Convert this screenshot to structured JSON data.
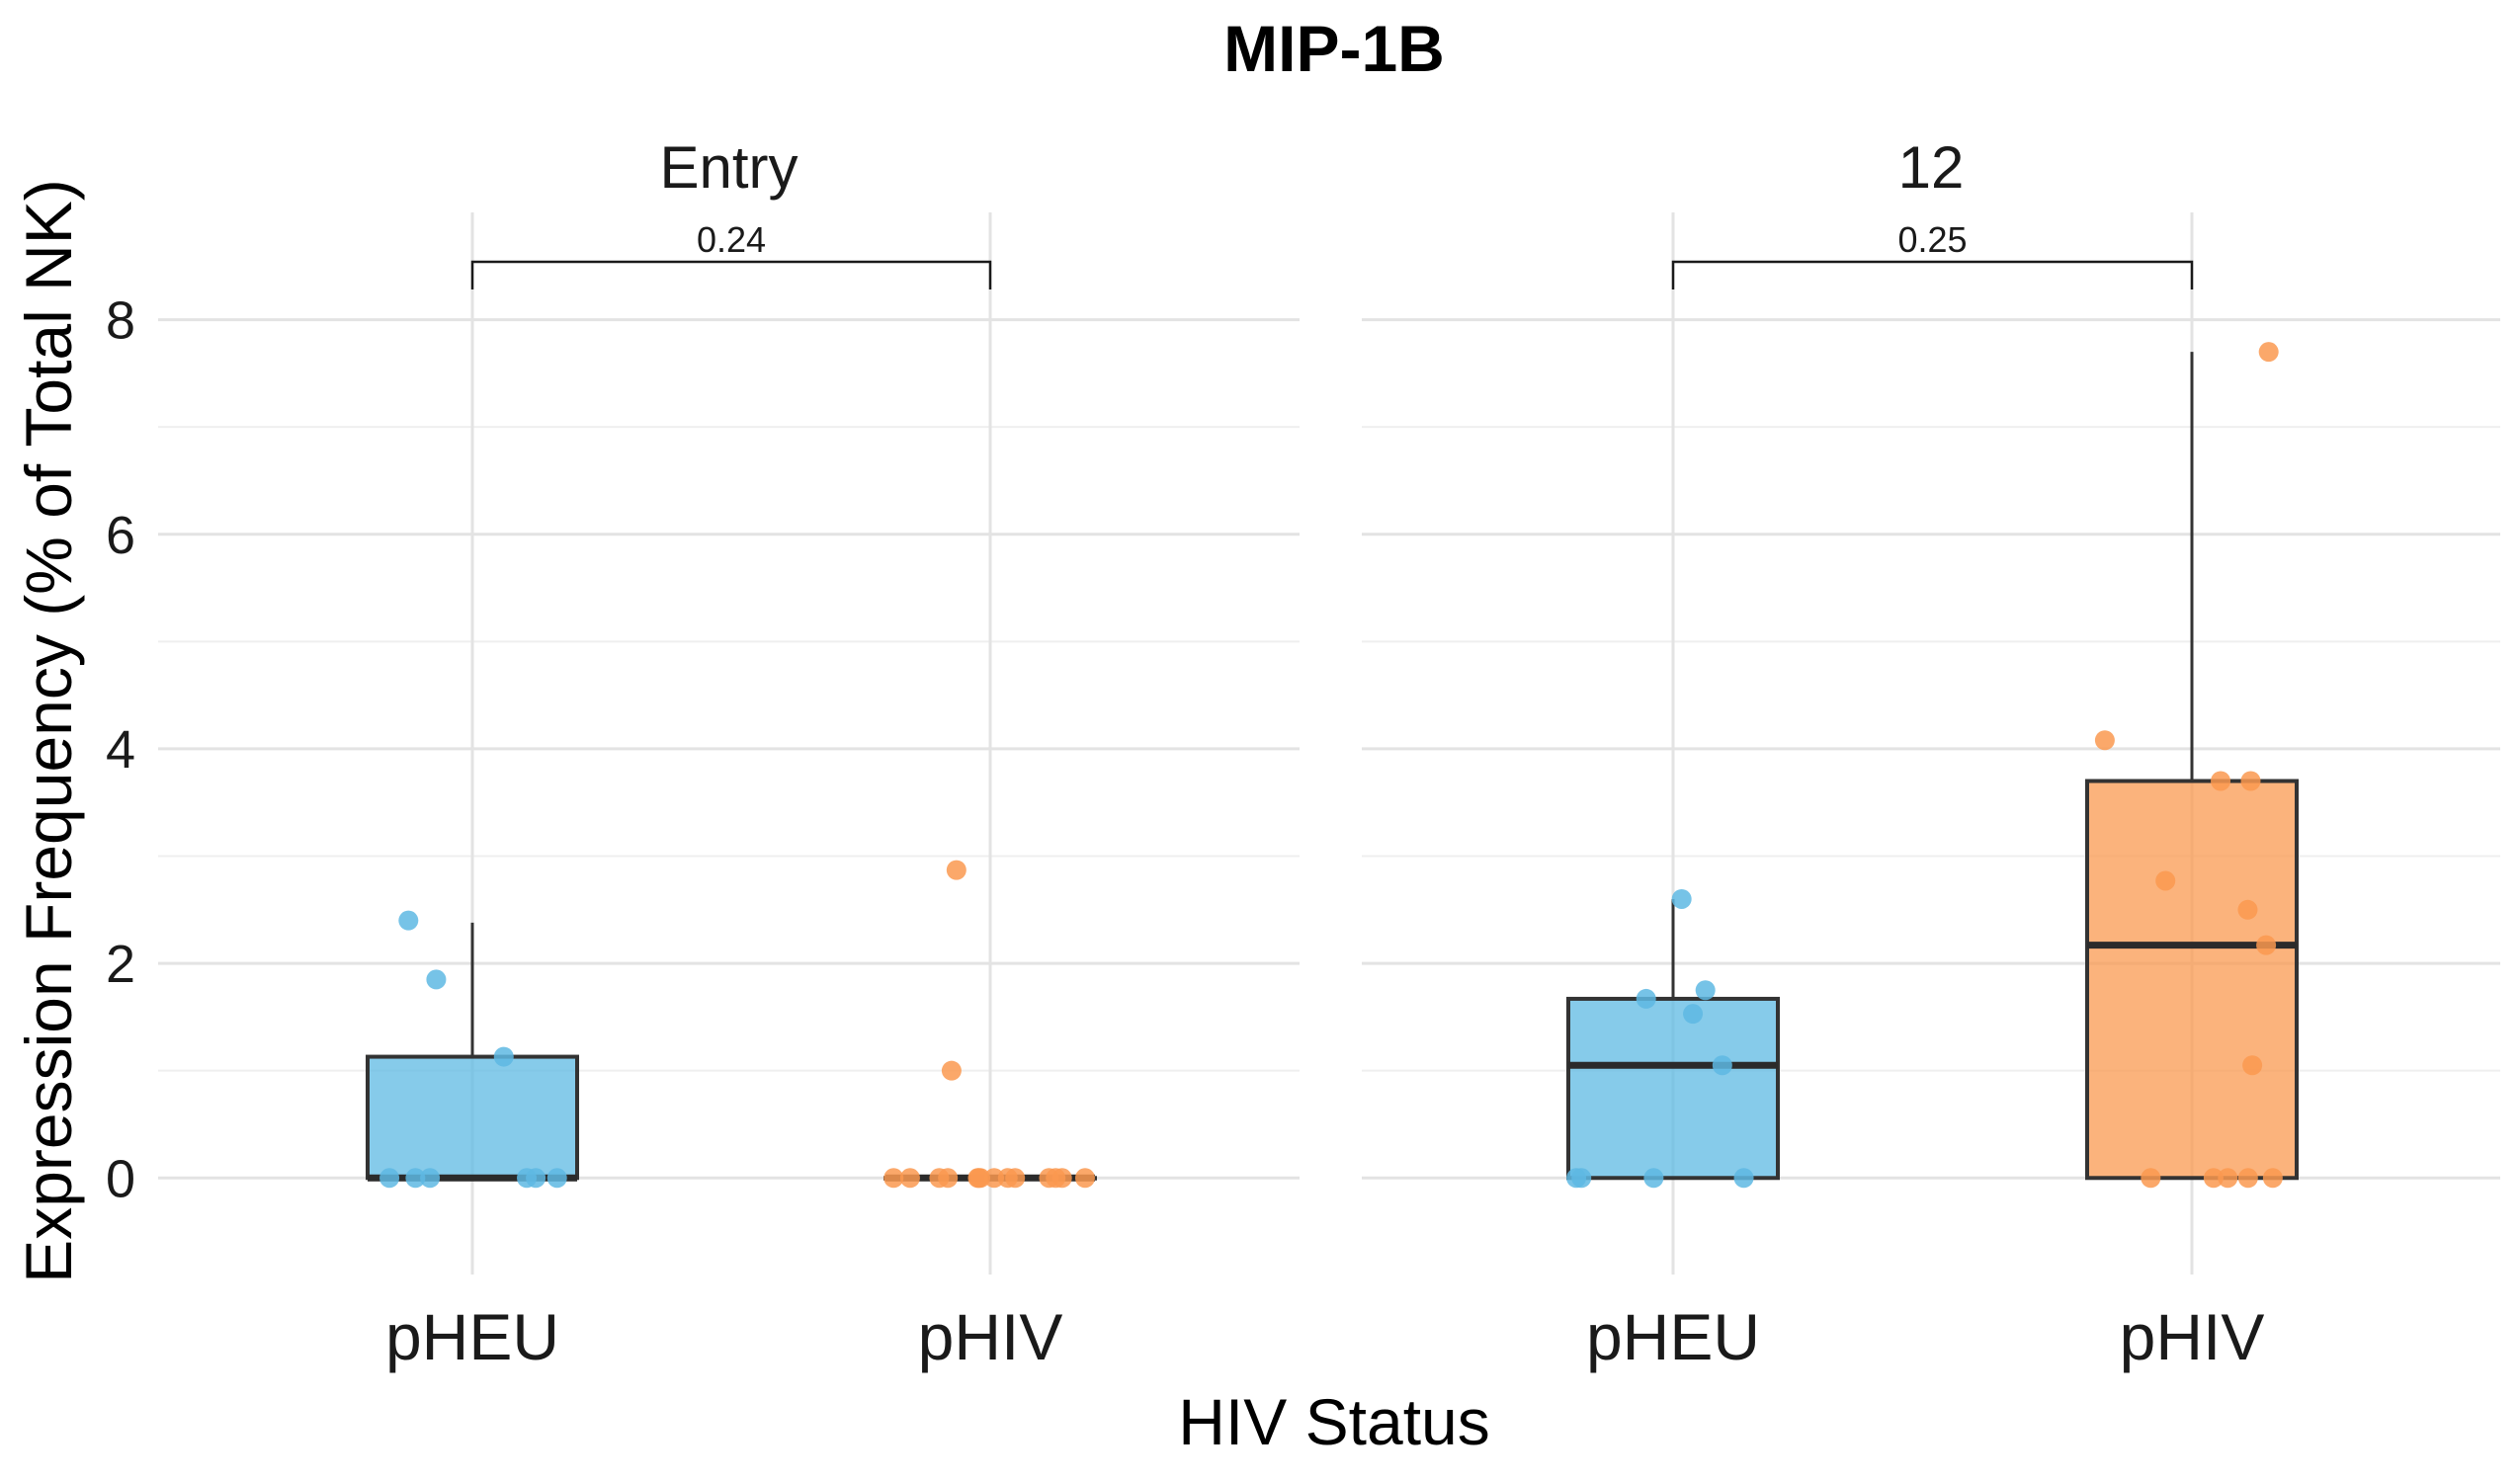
{
  "chart_data": {
    "type": "boxplot",
    "title": "MIP-1B",
    "xlabel": "HIV Status",
    "ylabel": "Expression Frequency (% of Total NK)",
    "ylim": [
      -0.9,
      9.0
    ],
    "yticks": [
      0,
      2,
      4,
      6,
      8
    ],
    "grid": true,
    "categories": [
      "pHEU",
      "pHIV"
    ],
    "colors": {
      "pHEU": "#5EB9E3",
      "pHIV": "#FA9950"
    },
    "facets": [
      {
        "label": "Entry",
        "p_value": "0.24",
        "groups": [
          {
            "category": "pHEU",
            "q1": 0,
            "median": 0,
            "q3": 1.13,
            "whisker_low": 0,
            "whisker_high": 2.38,
            "points": [
              1.13,
              0,
              0,
              0,
              0,
              0,
              2.4,
              1.85,
              0
            ]
          },
          {
            "category": "pHIV",
            "q1": 0,
            "median": 0,
            "q3": 0,
            "whisker_low": 0,
            "whisker_high": 0,
            "points": [
              2.87,
              0,
              0,
              0,
              0,
              0,
              0,
              0,
              0,
              0,
              0,
              0,
              0,
              0,
              1.0,
              0
            ]
          }
        ]
      },
      {
        "label": "12",
        "p_value": "0.25",
        "groups": [
          {
            "category": "pHEU",
            "q1": 0,
            "median": 1.05,
            "q3": 1.67,
            "whisker_low": 0,
            "whisker_high": 2.6,
            "points": [
              2.6,
              1.53,
              1.75,
              1.05,
              1.67,
              0,
              0,
              0,
              0
            ]
          },
          {
            "category": "pHIV",
            "q1": 0,
            "median": 2.17,
            "q3": 3.7,
            "whisker_low": 0,
            "whisker_high": 7.7,
            "points": [
              7.7,
              4.08,
              3.7,
              3.7,
              2.17,
              2.77,
              2.5,
              1.05,
              0,
              0,
              0,
              0,
              0
            ]
          }
        ]
      }
    ]
  }
}
